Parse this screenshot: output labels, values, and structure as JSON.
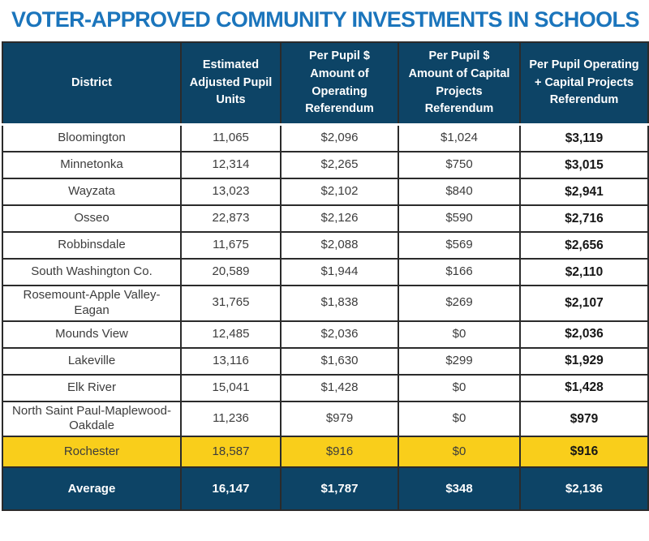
{
  "page": {
    "title": "VOTER-APPROVED COMMUNITY INVESTMENTS IN SCHOOLS"
  },
  "colors": {
    "title_blue": "#1B75BC",
    "header_navy": "#0D4466",
    "highlight_yellow": "#F9CE1B",
    "border_dark": "#2B2B2B",
    "body_text": "#3C3C3C"
  },
  "table": {
    "columns": [
      "District",
      "Estimated Adjusted Pupil Units",
      "Per Pupil $ Amount of Operating Referendum",
      "Per Pupil $ Amount of Capital Projects Referendum",
      "Per Pupil Operating + Capital Projects Referendum"
    ],
    "rows": [
      {
        "district": "Bloomington",
        "pupil_units": "11,065",
        "operating": "$2,096",
        "capital": "$1,024",
        "total": "$3,119",
        "highlight": false
      },
      {
        "district": "Minnetonka",
        "pupil_units": "12,314",
        "operating": "$2,265",
        "capital": "$750",
        "total": "$3,015",
        "highlight": false
      },
      {
        "district": "Wayzata",
        "pupil_units": "13,023",
        "operating": "$2,102",
        "capital": "$840",
        "total": "$2,941",
        "highlight": false
      },
      {
        "district": "Osseo",
        "pupil_units": "22,873",
        "operating": "$2,126",
        "capital": "$590",
        "total": "$2,716",
        "highlight": false
      },
      {
        "district": "Robbinsdale",
        "pupil_units": "11,675",
        "operating": "$2,088",
        "capital": "$569",
        "total": "$2,656",
        "highlight": false
      },
      {
        "district": "South Washington Co.",
        "pupil_units": "20,589",
        "operating": "$1,944",
        "capital": "$166",
        "total": "$2,110",
        "highlight": false
      },
      {
        "district": "Rosemount-Apple Valley-Eagan",
        "pupil_units": "31,765",
        "operating": "$1,838",
        "capital": "$269",
        "total": "$2,107",
        "highlight": false
      },
      {
        "district": "Mounds View",
        "pupil_units": "12,485",
        "operating": "$2,036",
        "capital": "$0",
        "total": "$2,036",
        "highlight": false
      },
      {
        "district": "Lakeville",
        "pupil_units": "13,116",
        "operating": "$1,630",
        "capital": "$299",
        "total": "$1,929",
        "highlight": false
      },
      {
        "district": "Elk River",
        "pupil_units": "15,041",
        "operating": "$1,428",
        "capital": "$0",
        "total": "$1,428",
        "highlight": false
      },
      {
        "district": "North Saint Paul-Maplewood-Oakdale",
        "pupil_units": "11,236",
        "operating": "$979",
        "capital": "$0",
        "total": "$979",
        "highlight": false
      },
      {
        "district": "Rochester",
        "pupil_units": "18,587",
        "operating": "$916",
        "capital": "$0",
        "total": "$916",
        "highlight": true
      }
    ],
    "footer": {
      "district": "Average",
      "pupil_units": "16,147",
      "operating": "$1,787",
      "capital": "$348",
      "total": "$2,136"
    }
  },
  "chart_data": {
    "type": "table",
    "title": "VOTER-APPROVED COMMUNITY INVESTMENTS IN SCHOOLS",
    "columns": [
      "District",
      "Estimated Adjusted Pupil Units",
      "Per Pupil $ Amount of Operating Referendum",
      "Per Pupil $ Amount of Capital Projects Referendum",
      "Per Pupil Operating + Capital Projects Referendum"
    ],
    "rows": [
      [
        "Bloomington",
        11065,
        2096,
        1024,
        3119
      ],
      [
        "Minnetonka",
        12314,
        2265,
        750,
        3015
      ],
      [
        "Wayzata",
        13023,
        2102,
        840,
        2941
      ],
      [
        "Osseo",
        22873,
        2126,
        590,
        2716
      ],
      [
        "Robbinsdale",
        11675,
        2088,
        569,
        2656
      ],
      [
        "South Washington Co.",
        20589,
        1944,
        166,
        2110
      ],
      [
        "Rosemount-Apple Valley-Eagan",
        31765,
        1838,
        269,
        2107
      ],
      [
        "Mounds View",
        12485,
        2036,
        0,
        2036
      ],
      [
        "Lakeville",
        13116,
        1630,
        299,
        1929
      ],
      [
        "Elk River",
        15041,
        1428,
        0,
        1428
      ],
      [
        "North Saint Paul-Maplewood-Oakdale",
        11236,
        979,
        0,
        979
      ],
      [
        "Rochester",
        18587,
        916,
        0,
        916
      ]
    ],
    "average_row": [
      "Average",
      16147,
      1787,
      348,
      2136
    ],
    "highlighted_row": "Rochester",
    "legend_position": "none",
    "grid": true
  }
}
